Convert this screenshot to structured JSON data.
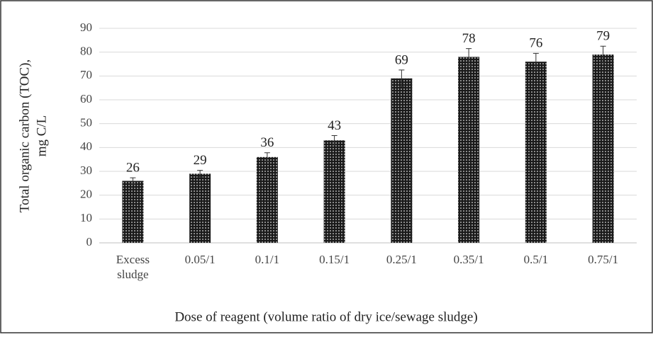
{
  "chart_data": {
    "type": "bar",
    "x_label": "Dose of reagent (volume ratio of dry ice/sewage sludge)",
    "y_label": [
      "Total organic carbon (TOC),",
      "mg C/L"
    ],
    "categories": [
      "Excess sludge",
      "0.05/1",
      "0.1/1",
      "0.15/1",
      "0.25/1",
      "0.35/1",
      "0.5/1",
      "0.75/1"
    ],
    "values": [
      26,
      29,
      36,
      43,
      69,
      78,
      76,
      79
    ],
    "errors": [
      1.3,
      1.4,
      1.8,
      2,
      3.5,
      3.5,
      3.5,
      3.5
    ],
    "color": "#1a1a1a",
    "ylim": [
      0,
      90
    ],
    "yticks": [
      0,
      10,
      20,
      30,
      40,
      50,
      60,
      70,
      80,
      90
    ],
    "grid": true
  }
}
